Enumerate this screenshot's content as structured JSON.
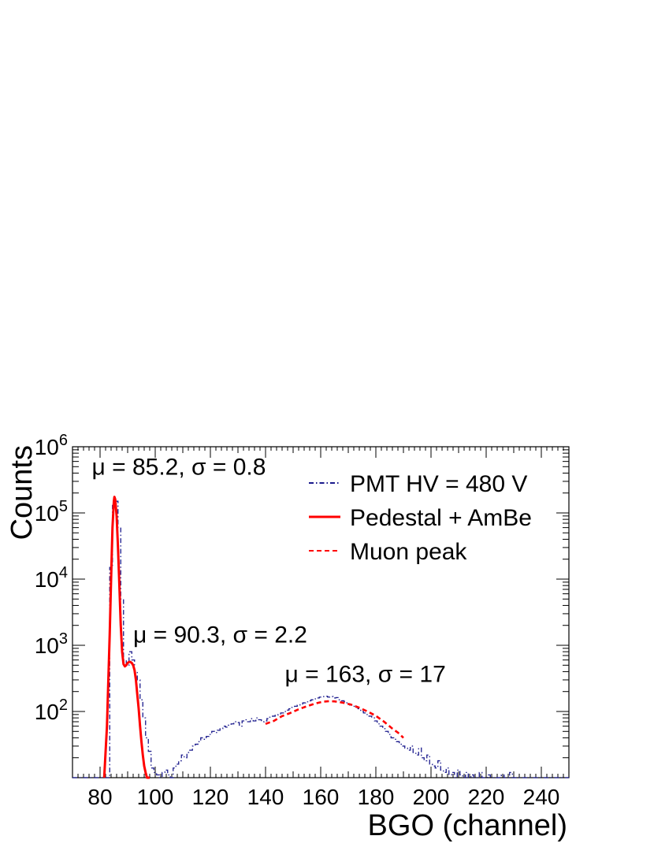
{
  "chart_data": {
    "type": "line",
    "xlabel": "BGO (channel)",
    "ylabel": "Counts",
    "xlim": [
      70,
      250
    ],
    "ylim": [
      10,
      1000000
    ],
    "yscale": "log",
    "grid": false,
    "legend_position": "top-right",
    "x_ticks": [
      80,
      100,
      120,
      140,
      160,
      180,
      200,
      220,
      240
    ],
    "y_ticks": [
      {
        "value": 100,
        "base": "10",
        "exp": "2"
      },
      {
        "value": 1000,
        "base": "10",
        "exp": "3"
      },
      {
        "value": 10000,
        "base": "10",
        "exp": "4"
      },
      {
        "value": 100000,
        "base": "10",
        "exp": "5"
      },
      {
        "value": 1000000,
        "base": "10",
        "exp": "6"
      }
    ],
    "legend": [
      {
        "label": "PMT HV = 480 V",
        "style": "dash-dot",
        "color": "#1a1a8c"
      },
      {
        "label": "Pedestal + AmBe",
        "style": "solid",
        "color": "#ff0000"
      },
      {
        "label": "Muon peak",
        "style": "dashed",
        "color": "#ff0000"
      }
    ],
    "annotations": [
      {
        "text": "μ = 85.2, σ = 0.8",
        "x": 77,
        "y": 380000
      },
      {
        "text": "μ = 90.3, σ = 2.2",
        "x": 92,
        "y": 1100
      },
      {
        "text": "μ = 163, σ = 17",
        "x": 147,
        "y": 280
      }
    ],
    "series": [
      {
        "name": "PMT HV = 480 V",
        "style": "histogram",
        "color": "#1a1a8c",
        "x": [
          84,
          85,
          86,
          87,
          88,
          89,
          90,
          91,
          92,
          93,
          94,
          95,
          96,
          97,
          98,
          99,
          100,
          101,
          102,
          103,
          104,
          105,
          106,
          107,
          108,
          109,
          110,
          111,
          112,
          113,
          114,
          115,
          116,
          117,
          118,
          119,
          120,
          121,
          122,
          123,
          124,
          125,
          126,
          127,
          128,
          129,
          130,
          131,
          132,
          133,
          134,
          135,
          136,
          137,
          138,
          139,
          140,
          141,
          142,
          143,
          144,
          145,
          146,
          147,
          148,
          149,
          150,
          151,
          152,
          153,
          154,
          155,
          156,
          157,
          158,
          159,
          160,
          161,
          162,
          163,
          164,
          165,
          166,
          167,
          168,
          169,
          170,
          171,
          172,
          173,
          174,
          175,
          176,
          177,
          178,
          179,
          180,
          181,
          182,
          183,
          184,
          185,
          186,
          187,
          188,
          189,
          190,
          191,
          192,
          193,
          194,
          195,
          196,
          197,
          198,
          199,
          200,
          201,
          202,
          203,
          204,
          205,
          206,
          207,
          208,
          209,
          210,
          211,
          212,
          213,
          214,
          215,
          216,
          217,
          218,
          219,
          220,
          221,
          222,
          223,
          224,
          225,
          226,
          227,
          228,
          229,
          230
        ],
        "y": [
          15000,
          130000,
          150000,
          60000,
          5000,
          600,
          500,
          800,
          600,
          400,
          300,
          150,
          80,
          40,
          25,
          14,
          12,
          11,
          10,
          12,
          13,
          11,
          10,
          14,
          16,
          18,
          22,
          20,
          24,
          26,
          30,
          32,
          35,
          40,
          38,
          42,
          45,
          50,
          48,
          52,
          55,
          60,
          58,
          62,
          65,
          70,
          68,
          60,
          72,
          75,
          70,
          78,
          72,
          80,
          75,
          70,
          72,
          78,
          82,
          85,
          88,
          92,
          95,
          100,
          105,
          110,
          115,
          120,
          125,
          130,
          135,
          140,
          145,
          150,
          155,
          160,
          165,
          168,
          170,
          165,
          168,
          160,
          162,
          150,
          145,
          140,
          130,
          125,
          120,
          115,
          110,
          100,
          95,
          90,
          85,
          80,
          72,
          65,
          60,
          55,
          50,
          45,
          40,
          38,
          35,
          32,
          30,
          28,
          26,
          30,
          24,
          22,
          28,
          20,
          18,
          22,
          16,
          15,
          14,
          18,
          13,
          12,
          14,
          11,
          12,
          10,
          13,
          11,
          10,
          12,
          10,
          11,
          10,
          10,
          12,
          10,
          10,
          11,
          10,
          10,
          10,
          10,
          11,
          10,
          10,
          12,
          10
        ]
      },
      {
        "name": "Pedestal + AmBe",
        "style": "solid",
        "color": "#ff0000",
        "x": [
          81.5,
          82.5,
          83.5,
          84.0,
          84.5,
          85.0,
          85.2,
          85.5,
          86.0,
          86.5,
          87.0,
          87.5,
          88.0,
          88.5,
          89.0,
          89.5,
          90.0,
          90.5,
          91.0,
          91.5,
          92.0,
          92.5,
          93.0,
          93.5,
          94.0,
          94.5,
          95.0,
          95.5,
          96.0,
          96.5,
          97.0,
          97.5,
          98.0
        ],
        "y": [
          10,
          60,
          1500,
          10000,
          60000,
          150000,
          175000,
          160000,
          90000,
          30000,
          8000,
          2000,
          800,
          520,
          480,
          500,
          540,
          560,
          560,
          540,
          500,
          420,
          300,
          180,
          110,
          60,
          35,
          22,
          15,
          12,
          10,
          10,
          10
        ]
      },
      {
        "name": "Muon peak",
        "style": "dashed",
        "color": "#ff0000",
        "x": [
          140,
          143,
          146,
          149,
          152,
          155,
          158,
          161,
          163,
          165,
          168,
          171,
          174,
          177,
          180,
          183,
          186,
          188,
          190
        ],
        "y": [
          65,
          72,
          85,
          95,
          108,
          120,
          132,
          141,
          143,
          142,
          136,
          127,
          114,
          100,
          86,
          70,
          55,
          48,
          40
        ]
      }
    ]
  }
}
